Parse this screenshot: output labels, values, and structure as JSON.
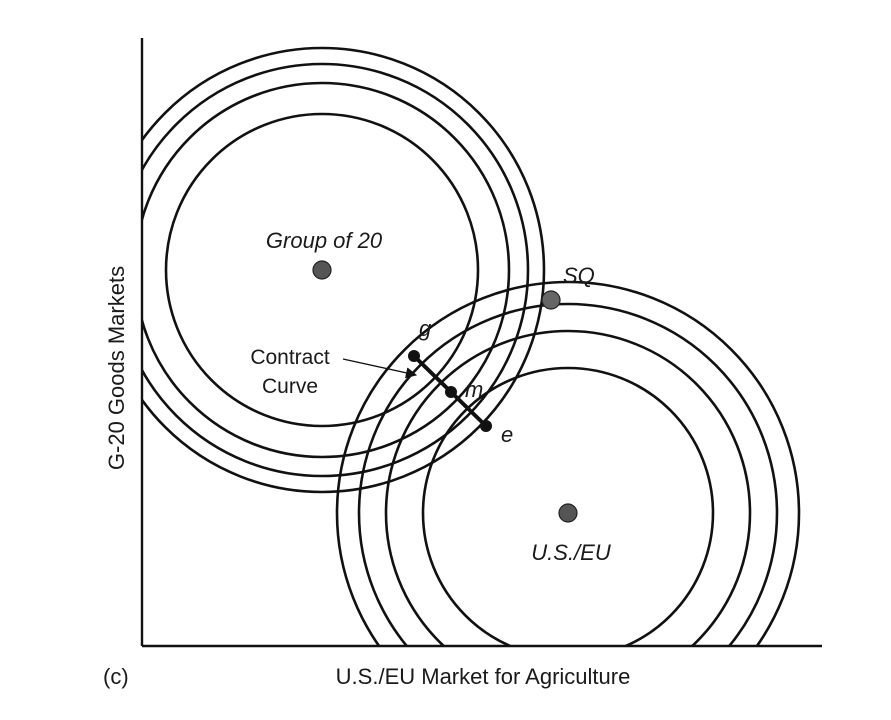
{
  "panel_label": "(c)",
  "axes": {
    "x_label": "U.S./EU Market for Agriculture",
    "y_label": "G-20 Goods Markets"
  },
  "actors": [
    {
      "name": "Group of 20",
      "rings": 4
    },
    {
      "name": "U.S./EU",
      "rings": 4
    }
  ],
  "points": {
    "status_quo": "SQ",
    "g": "g",
    "m": "m",
    "e": "e"
  },
  "contract_curve": {
    "label_line1": "Contract",
    "label_line2": "Curve"
  },
  "colors": {
    "ink": "#111111",
    "ideal_point": "#555555"
  }
}
